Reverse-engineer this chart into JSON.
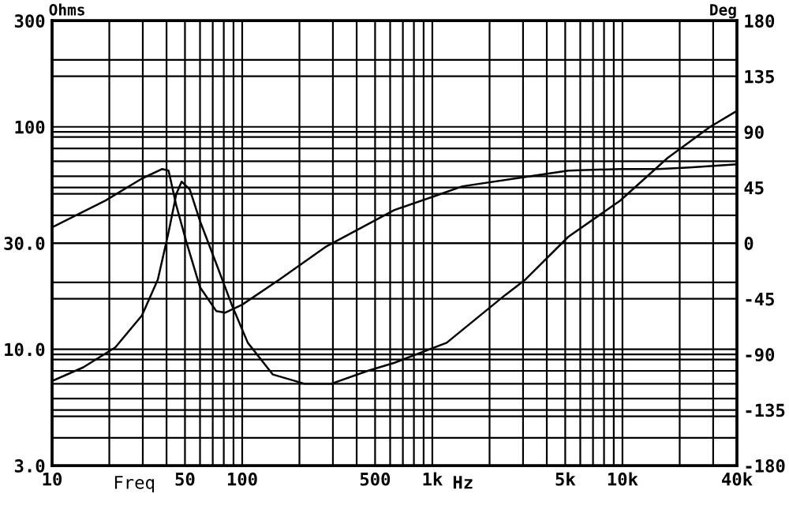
{
  "chart_data": {
    "type": "line",
    "xlabel": "Freq",
    "ylabel": "Ohms",
    "y2label": "Deg",
    "annotations": [
      "Hz"
    ],
    "log": "xy",
    "series": [
      {
        "color": "#000000",
        "x": [
          10,
          14.6,
          21.5,
          29.7,
          36,
          41,
          45,
          48,
          53,
          60,
          73,
          88,
          107,
          145,
          213,
          294,
          457,
          632,
          1190,
          2410,
          3090,
          5180,
          9730,
          17260,
          28900,
          40000
        ],
        "values": [
          7.2,
          8.3,
          10.2,
          14.2,
          20.6,
          33.6,
          49.8,
          56.7,
          52.3,
          37.7,
          24.3,
          15.9,
          10.7,
          7.7,
          7.0,
          7.0,
          8.0,
          8.7,
          10.7,
          17.5,
          20.6,
          32,
          46.6,
          72.4,
          100,
          118
        ]
      },
      {
        "color": "#000000",
        "axis": "y2",
        "x": [
          10,
          19.1,
          29.7,
          38,
          41,
          45,
          50.8,
          60,
          73,
          81.6,
          100,
          157,
          278,
          632,
          981,
          1440,
          3090,
          5180,
          9730,
          15380,
          22500,
          40000
        ],
        "values": [
          12.8,
          34.5,
          52.3,
          60,
          58.7,
          30.6,
          1.3,
          -35.7,
          -54.9,
          -56.2,
          -49.8,
          -29.4,
          -2.5,
          26.8,
          37,
          46,
          53.6,
          58.7,
          60,
          60,
          61.3,
          63.8
        ]
      }
    ],
    "xlim": [
      10,
      40000
    ],
    "xticks": [
      10,
      50,
      100,
      500,
      {
        "value": 1000,
        "label": "1k"
      },
      {
        "value": 5000,
        "label": "5k"
      },
      {
        "value": 10000,
        "label": "10k"
      },
      {
        "value": 40000,
        "label": "40k"
      }
    ],
    "ylim": [
      3,
      300
    ],
    "yticks": [
      {
        "value": 3,
        "label": "3.0"
      },
      {
        "value": 10,
        "label": "10.0"
      },
      {
        "value": 30,
        "label": "30.0"
      },
      100,
      300
    ],
    "y2lim": [
      -180,
      180
    ],
    "y2ticks": [
      -180,
      -135,
      -90,
      -45,
      0,
      45,
      90,
      135,
      180
    ],
    "grid": true
  }
}
